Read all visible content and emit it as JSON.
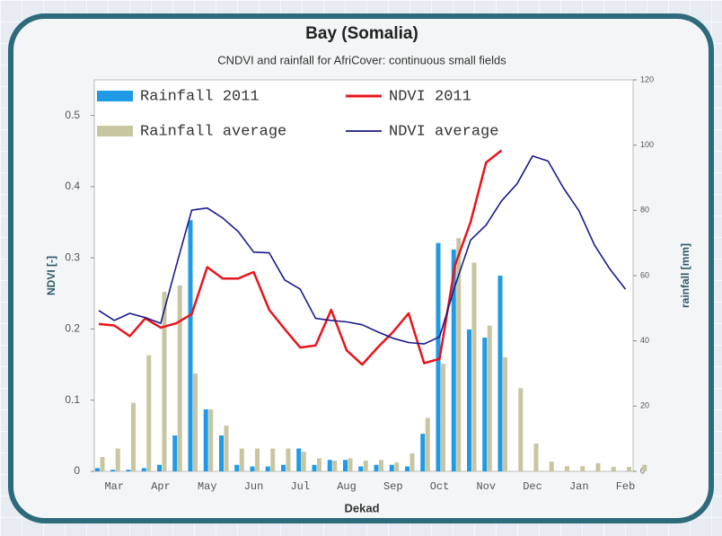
{
  "chart_data": {
    "type": "combo",
    "title": "Bay (Somalia)",
    "subtitle": "CNDVI and rainfall for AfriCover: continuous small fields",
    "x_label": "Dekad",
    "y_label": "NDVI [-]",
    "y2_label": "rainfall [mm]",
    "categories": [
      null,
      "Mar",
      null,
      null,
      "Apr",
      null,
      null,
      "May",
      null,
      null,
      "Jun",
      null,
      null,
      "Jul",
      null,
      null,
      "Aug",
      null,
      null,
      "Sep",
      null,
      null,
      "Oct",
      null,
      null,
      "Nov",
      null,
      null,
      "Dec",
      null,
      null,
      "Jan",
      null,
      null,
      "Feb",
      null
    ],
    "ylim": [
      0,
      0.55
    ],
    "yticks": [
      0,
      0.1,
      0.2,
      0.3,
      0.4,
      0.5
    ],
    "y2lim": [
      0,
      120
    ],
    "y2ticks": [
      0,
      20,
      40,
      60,
      80,
      100,
      120
    ],
    "legend": "top-left",
    "series": [
      {
        "name": "Rainfall 2011",
        "type": "bar",
        "axis": "y2",
        "color": "#1e9ae6",
        "values": [
          1,
          0.5,
          0.5,
          1,
          2,
          11,
          77,
          19,
          11,
          2,
          1.5,
          1.5,
          2,
          7,
          2,
          3.5,
          3.5,
          1.5,
          2,
          2,
          1.5,
          11.5,
          70,
          68,
          43.5,
          41,
          60,
          null,
          null,
          null,
          null,
          null,
          null,
          null,
          null,
          null
        ]
      },
      {
        "name": "Rainfall average",
        "type": "bar",
        "axis": "y2",
        "color": "#c8c6a0",
        "values": [
          4.4,
          7,
          21,
          35.6,
          55,
          57,
          30,
          19,
          14,
          7,
          7,
          7,
          7,
          6,
          4,
          3.3,
          4,
          3.3,
          3.5,
          2.7,
          5.5,
          16.4,
          33,
          71.5,
          64,
          44.7,
          35,
          25.5,
          8.5,
          3,
          1.6,
          1.6,
          2.5,
          1.4,
          1.4,
          2
        ]
      },
      {
        "name": "NDVI 2011",
        "type": "line",
        "color": "#e8141c",
        "values": [
          0.207,
          0.205,
          0.19,
          0.215,
          0.202,
          0.208,
          0.221,
          0.287,
          0.271,
          0.271,
          0.28,
          0.227,
          0.2,
          0.174,
          0.177,
          0.227,
          0.17,
          0.15,
          0.174,
          0.196,
          0.222,
          0.152,
          0.158,
          0.29,
          0.35,
          0.434,
          0.451,
          null,
          null,
          null,
          null,
          null,
          null,
          null,
          null,
          null
        ]
      },
      {
        "name": "NDVI average",
        "type": "line",
        "color": "#1a1a8c",
        "values": [
          0.226,
          0.212,
          0.222,
          0.216,
          0.208,
          0.289,
          0.367,
          0.37,
          0.356,
          0.337,
          0.308,
          0.307,
          0.269,
          0.256,
          0.215,
          0.212,
          0.21,
          0.206,
          0.196,
          0.187,
          0.181,
          0.179,
          0.189,
          0.261,
          0.325,
          0.346,
          0.38,
          0.404,
          0.443,
          0.436,
          0.398,
          0.366,
          0.318,
          0.284,
          0.256,
          null
        ]
      }
    ]
  }
}
